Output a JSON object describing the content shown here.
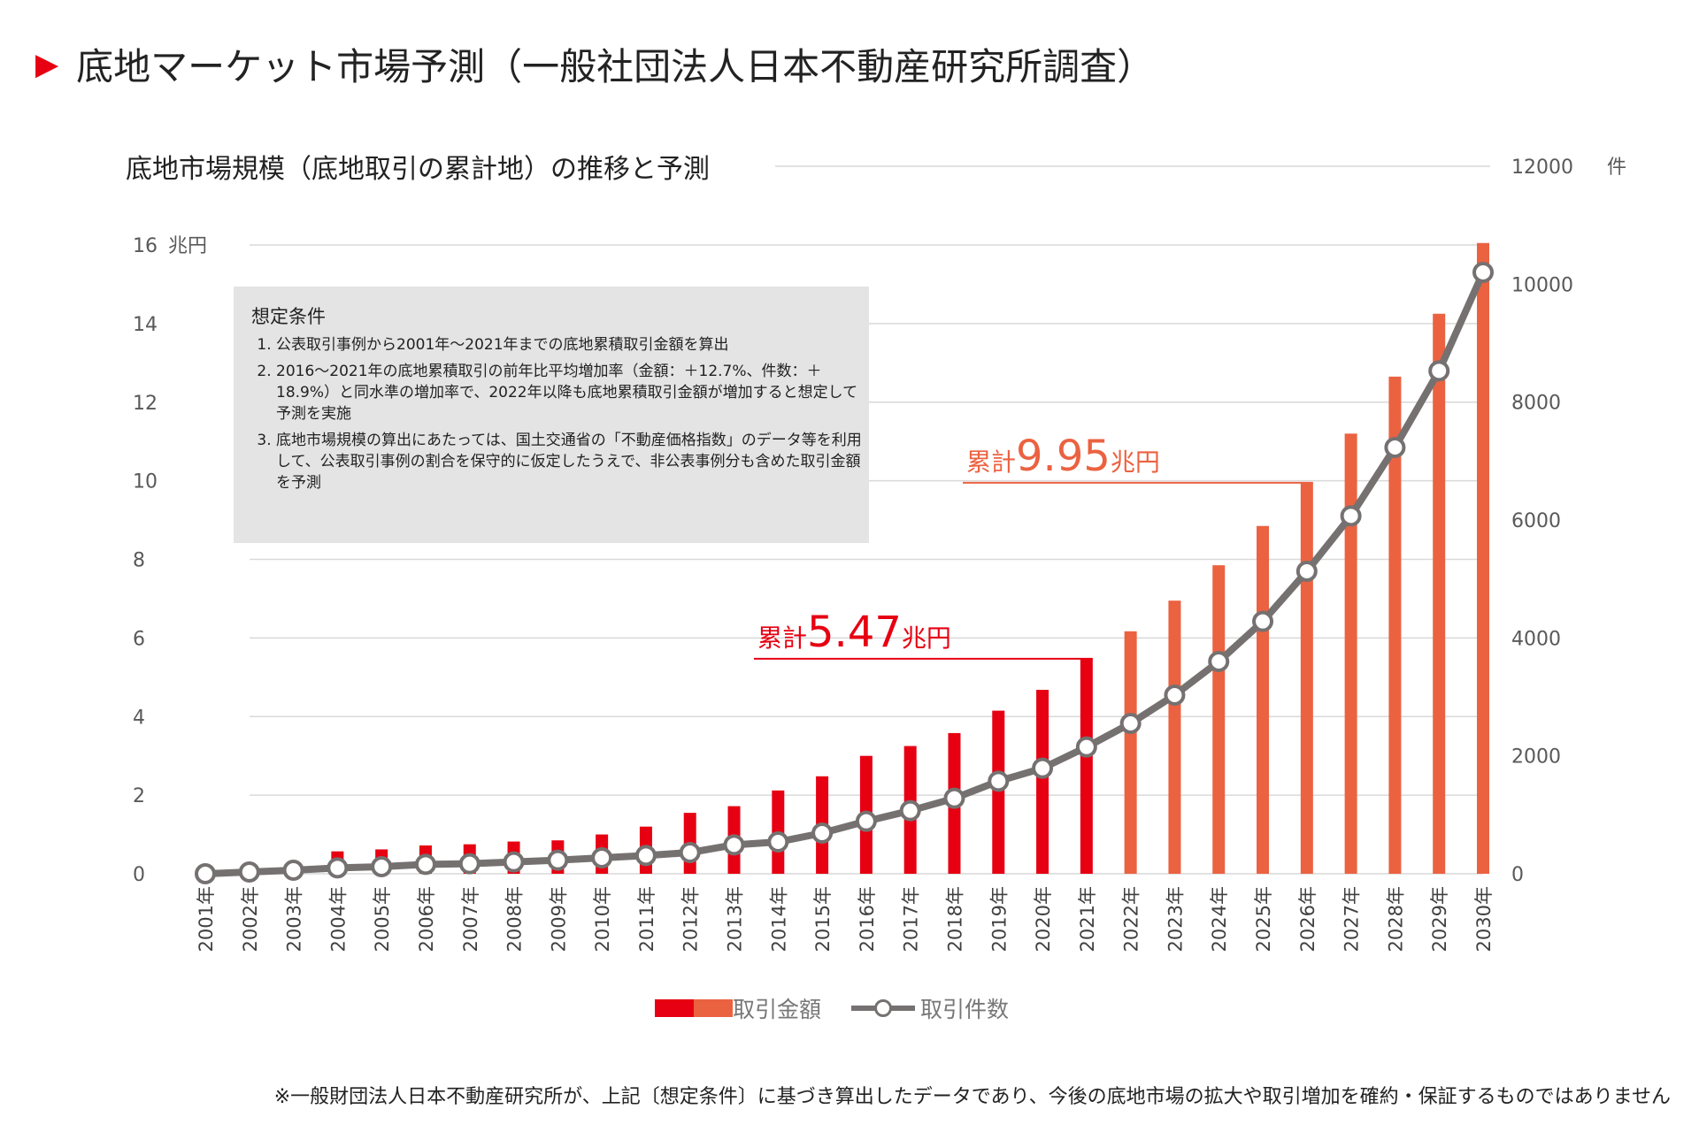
{
  "header": {
    "title": "底地マーケット市場予測（一般社団法人日本不動産研究所調査）"
  },
  "chart_data": {
    "type": "bar+line",
    "title": "底地市場規模（底地取引の累計地）の推移と予測",
    "categories": [
      "2001年",
      "2002年",
      "2003年",
      "2004年",
      "2005年",
      "2006年",
      "2007年",
      "2008年",
      "2009年",
      "2010年",
      "2011年",
      "2012年",
      "2013年",
      "2014年",
      "2015年",
      "2016年",
      "2017年",
      "2018年",
      "2019年",
      "2020年",
      "2021年",
      "2022年",
      "2023年",
      "2024年",
      "2025年",
      "2026年",
      "2027年",
      "2028年",
      "2029年",
      "2030年"
    ],
    "series": [
      {
        "name": "取引金額",
        "type": "bar",
        "axis": "left",
        "unit": "兆円",
        "values": [
          0.02,
          0.05,
          0.1,
          0.57,
          0.62,
          0.72,
          0.75,
          0.82,
          0.85,
          1.0,
          1.2,
          1.55,
          1.72,
          2.12,
          2.48,
          3.0,
          3.25,
          3.58,
          4.15,
          4.68,
          5.47,
          6.17,
          6.95,
          7.85,
          8.85,
          9.95,
          11.2,
          12.65,
          14.25,
          16.05
        ],
        "actual_color": "#e60012",
        "forecast_color": "#eb6241",
        "forecast_from": "2022年"
      },
      {
        "name": "取引件数",
        "type": "line",
        "axis": "right",
        "unit": "件",
        "values": [
          0,
          30,
          60,
          100,
          120,
          160,
          170,
          200,
          230,
          270,
          310,
          360,
          490,
          540,
          690,
          890,
          1070,
          1280,
          1570,
          1790,
          2150,
          2550,
          3030,
          3600,
          4280,
          5130,
          6070,
          7230,
          8530,
          10200
        ],
        "color": "#767171"
      }
    ],
    "y_left": {
      "min": 0,
      "max": 16,
      "ticks": [
        "0",
        "2",
        "4",
        "6",
        "8",
        "10",
        "12",
        "14",
        "16"
      ],
      "unit_label": "兆円"
    },
    "y_right": {
      "min": 0,
      "max": 12000,
      "ticks": [
        "0",
        "2000",
        "4000",
        "6000",
        "8000",
        "10000",
        "12000"
      ],
      "unit_label": "件"
    },
    "annotations": [
      {
        "prefix": "累計",
        "value": "5.47",
        "suffix": "兆円",
        "year": "2021年",
        "color": "#e60012"
      },
      {
        "prefix": "累計",
        "value": "9.95",
        "suffix": "兆円",
        "year": "2026年",
        "color": "#eb6241"
      }
    ],
    "legend": [
      "取引金額",
      "取引件数"
    ],
    "legend_position": "bottom"
  },
  "assumptions": {
    "heading": "想定条件",
    "items": [
      "公表取引事例から2001年～2021年までの底地累積取引金額を算出",
      "2016～2021年の底地累積取引の前年比平均増加率（金額：＋12.7%、件数：＋18.9%）と同水準の増加率で、2022年以降も底地累積取引金額が増加すると想定して予測を実施",
      "底地市場規模の算出にあたっては、国土交通省の「不動産価格指数」のデータ等を利用して、公表取引事例の割合を保守的に仮定したうえで、非公表事例分も含めた取引金額を予測"
    ]
  },
  "footnote": "※一般財団法人日本不動産研究所が、上記〔想定条件〕に基づき算出したデータであり、今後の底地市場の拡大や取引増加を確約・保証するものではありません"
}
